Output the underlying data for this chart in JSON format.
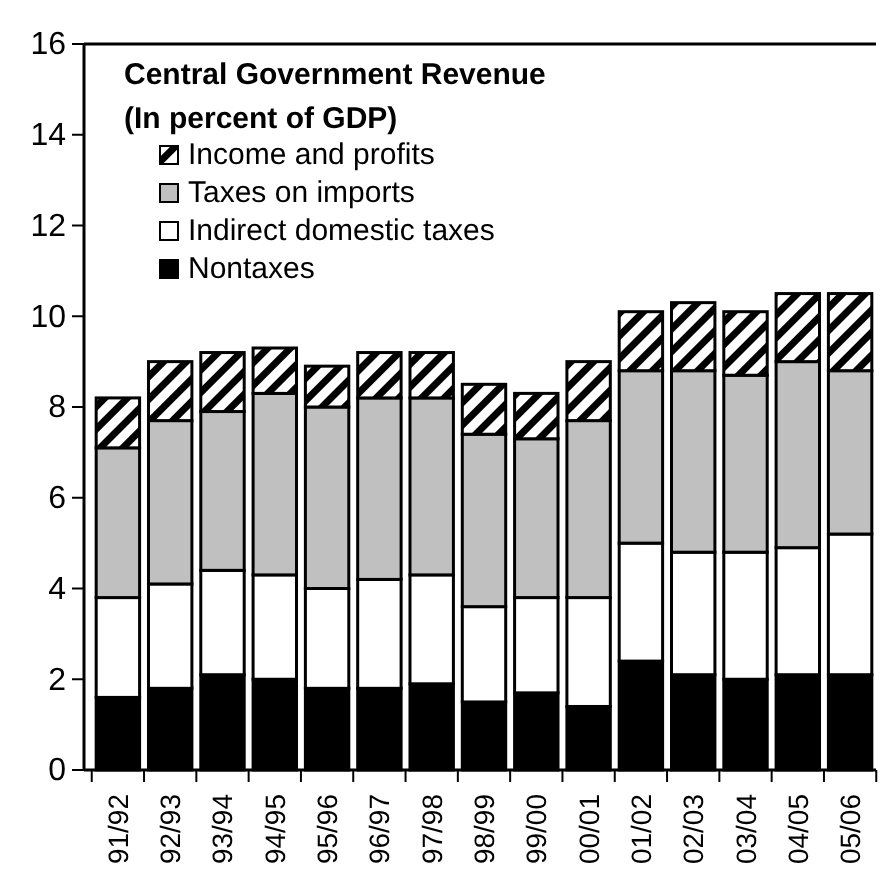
{
  "chart_data": {
    "type": "bar",
    "title": "Central Government Revenue",
    "subtitle": "(In percent of GDP)",
    "stacked": true,
    "legend": "top left",
    "grid": false,
    "categories": [
      "91/92",
      "92/93",
      "93/94",
      "94/95",
      "95/96",
      "96/97",
      "97/98",
      "98/99",
      "99/00",
      "00/01",
      "01/02",
      "02/03",
      "03/04",
      "04/05",
      "05/06"
    ],
    "ylim": [
      0,
      16
    ],
    "yticks": [
      0,
      2,
      4,
      6,
      8,
      10,
      12,
      14,
      16
    ],
    "series": [
      {
        "name": "Nontaxes",
        "color": "#000000",
        "values": [
          1.6,
          1.8,
          2.1,
          2.0,
          1.8,
          1.8,
          1.9,
          1.5,
          1.7,
          1.4,
          2.4,
          2.1,
          2.0,
          2.1,
          2.1
        ]
      },
      {
        "name": "Indirect domestic taxes",
        "color": "#ffffff",
        "values": [
          2.2,
          2.3,
          2.3,
          2.3,
          2.2,
          2.4,
          2.4,
          2.1,
          2.1,
          2.4,
          2.6,
          2.7,
          2.8,
          2.8,
          3.1
        ]
      },
      {
        "name": "Taxes on imports",
        "color": "#c0c0c0",
        "values": [
          3.3,
          3.6,
          3.5,
          4.0,
          4.0,
          4.0,
          3.9,
          3.8,
          3.5,
          3.9,
          3.8,
          4.0,
          3.9,
          4.1,
          3.6
        ]
      },
      {
        "name": "Income and profits",
        "color": "#000000",
        "values": [
          1.1,
          1.3,
          1.3,
          1.0,
          0.9,
          1.0,
          1.0,
          1.1,
          1.0,
          1.3,
          1.3,
          1.5,
          1.4,
          1.5,
          1.7
        ]
      }
    ]
  }
}
